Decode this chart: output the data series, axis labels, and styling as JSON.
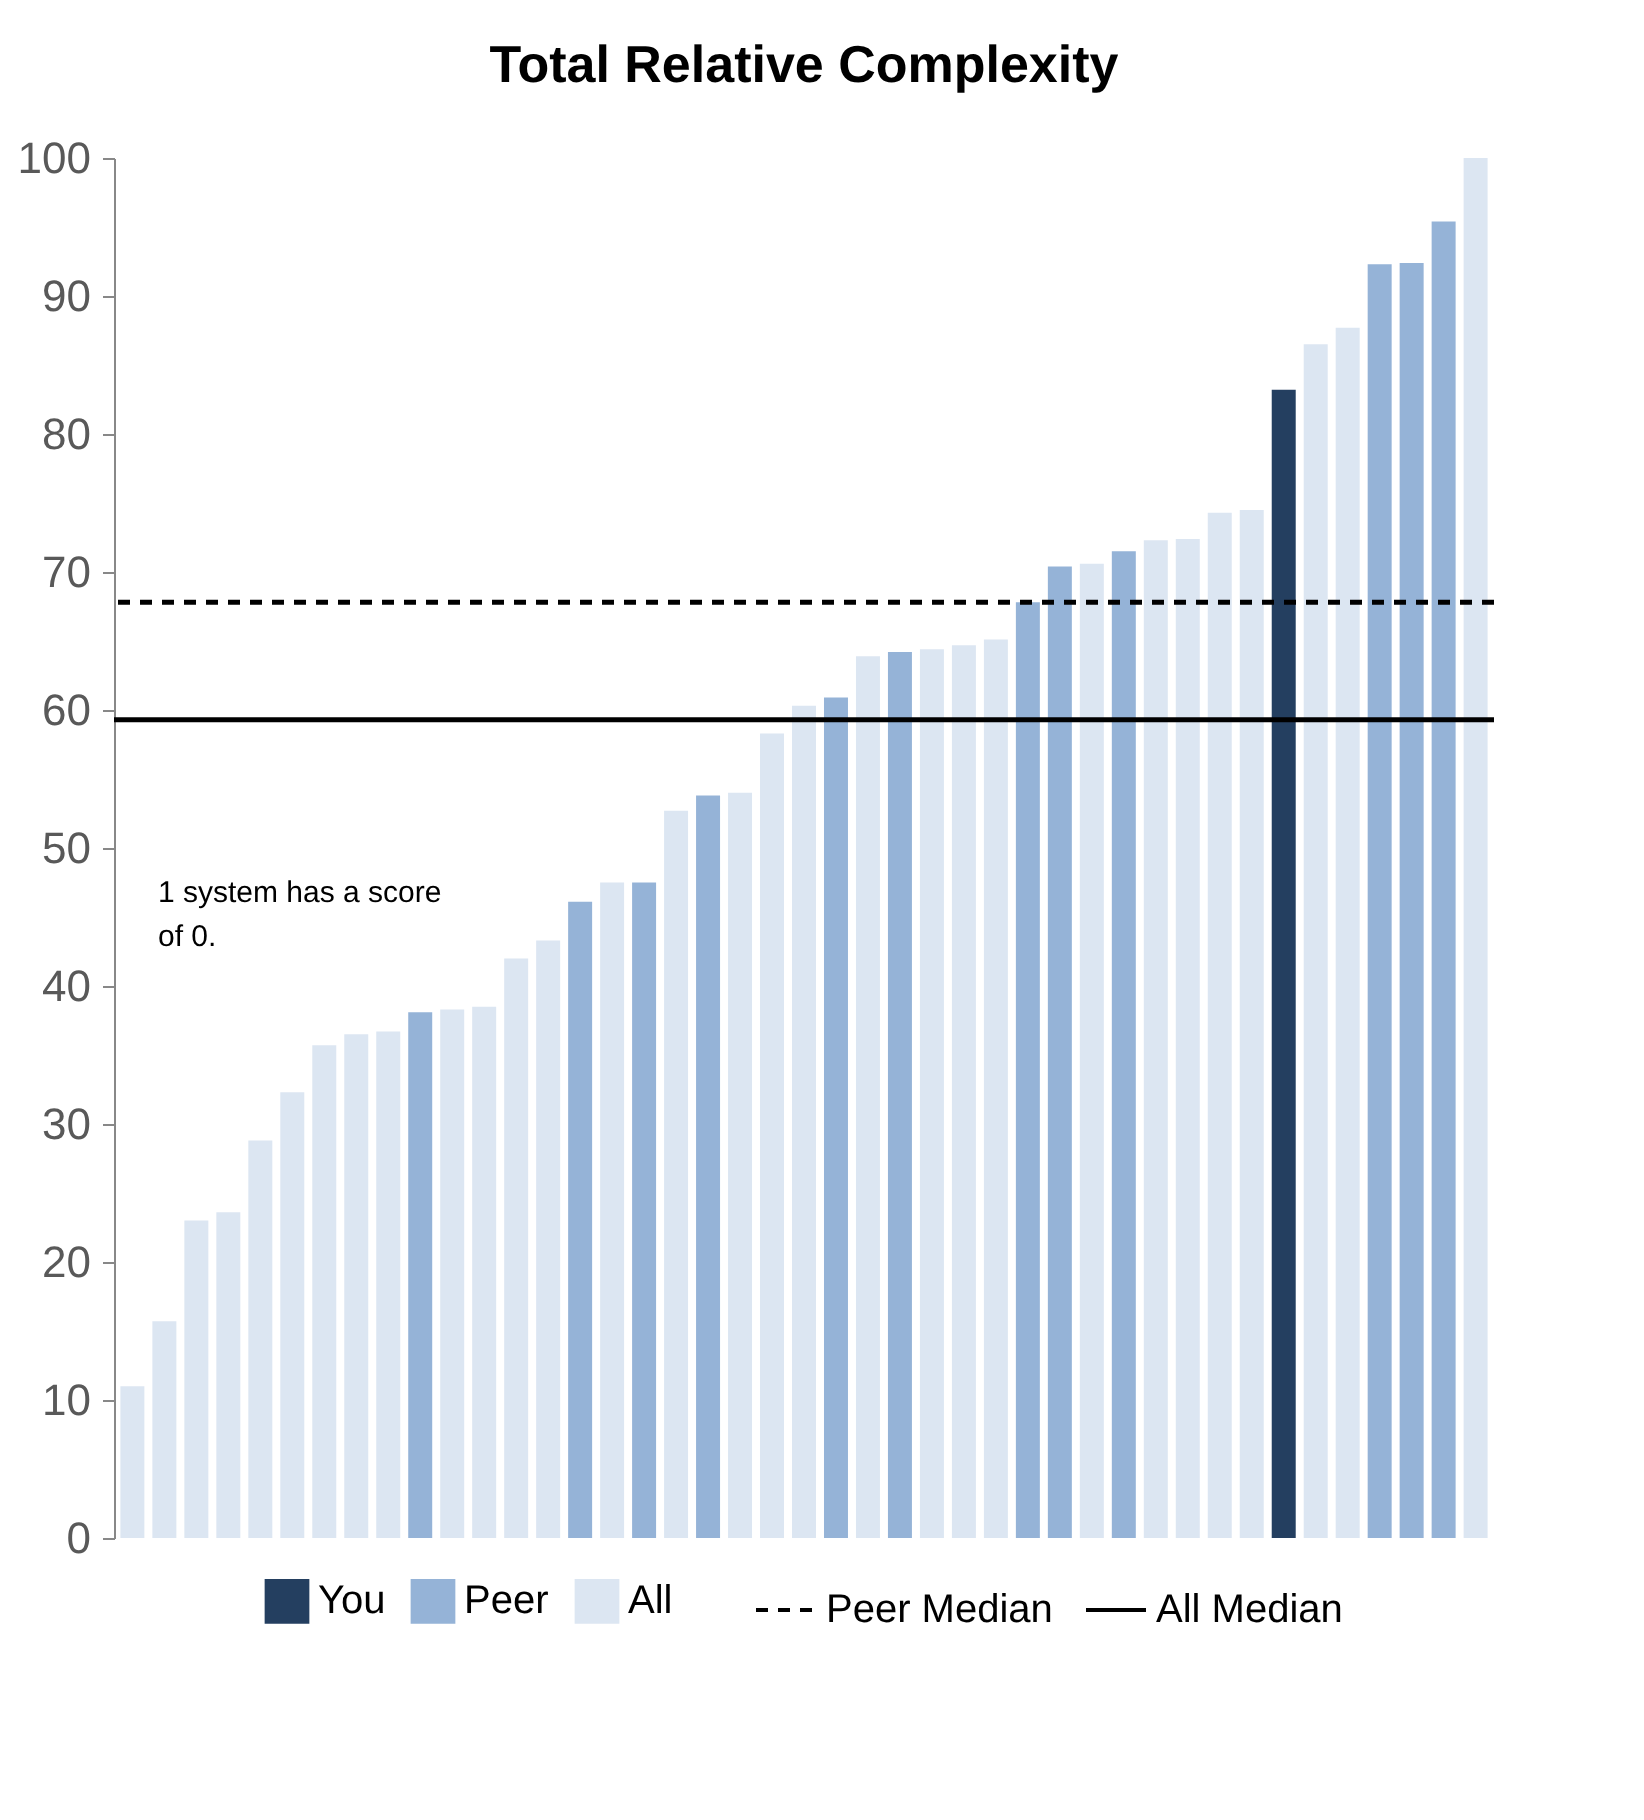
{
  "chart_data": {
    "type": "bar",
    "title": "Total Relative Complexity",
    "categories": [
      null,
      null,
      null,
      null,
      null,
      null,
      null,
      null,
      null,
      null,
      null,
      null,
      null,
      null,
      null,
      null,
      null,
      null,
      null,
      null,
      null,
      null,
      null,
      null,
      null,
      null,
      null,
      null,
      null,
      null,
      null,
      null,
      null,
      null,
      null,
      null,
      null,
      null,
      null,
      null,
      null,
      null,
      null
    ],
    "series": [
      {
        "name": "You",
        "color": "#243f60",
        "values": [
          null,
          null,
          null,
          null,
          null,
          null,
          null,
          null,
          null,
          null,
          null,
          null,
          null,
          null,
          null,
          null,
          null,
          null,
          null,
          null,
          null,
          null,
          null,
          null,
          null,
          null,
          null,
          null,
          null,
          null,
          null,
          null,
          null,
          null,
          null,
          null,
          83.2,
          null,
          null,
          null,
          null,
          null,
          null
        ]
      },
      {
        "name": "Peer",
        "color": "#95b3d7",
        "values": [
          null,
          null,
          null,
          null,
          null,
          null,
          null,
          null,
          null,
          38.1,
          null,
          null,
          null,
          null,
          46.1,
          null,
          47.5,
          null,
          53.8,
          null,
          null,
          null,
          60.9,
          null,
          64.2,
          null,
          null,
          null,
          67.8,
          70.4,
          null,
          71.5,
          null,
          null,
          null,
          null,
          null,
          null,
          null,
          92.3,
          92.4,
          95.4,
          null
        ]
      },
      {
        "name": "All",
        "color": "#dce6f2",
        "values": [
          11.0,
          15.7,
          23.0,
          23.6,
          28.8,
          32.3,
          35.7,
          36.5,
          36.7,
          null,
          38.3,
          38.5,
          42.0,
          43.3,
          null,
          47.5,
          null,
          52.7,
          null,
          54.0,
          58.3,
          60.3,
          null,
          63.9,
          null,
          64.4,
          64.7,
          65.1,
          null,
          null,
          70.6,
          null,
          72.3,
          72.4,
          74.3,
          74.5,
          null,
          86.5,
          87.7,
          null,
          null,
          null,
          100
        ]
      }
    ],
    "ylim": [
      0,
      100
    ],
    "yticks": [
      0,
      10,
      20,
      30,
      40,
      50,
      60,
      70,
      80,
      90,
      100
    ],
    "ref_lines": [
      {
        "axis": "y",
        "value": 67.8,
        "label": "Peer Median",
        "line_style": "dashed",
        "color": "#000000"
      },
      {
        "axis": "y",
        "value": 59.3,
        "label": "All Median",
        "line_style": "solid",
        "color": "#000000"
      }
    ],
    "annotations": [
      "1 system has a score of 0."
    ],
    "legend": "bottom"
  }
}
